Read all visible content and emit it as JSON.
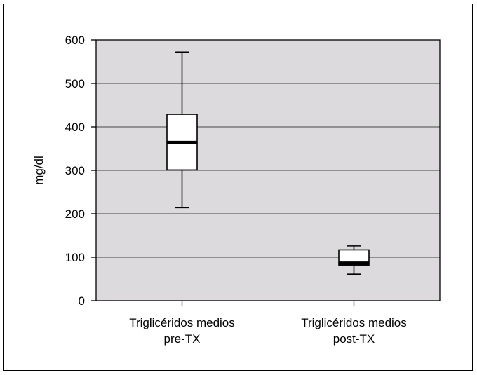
{
  "chart_data": {
    "type": "box",
    "title": "",
    "ylabel": "mg/dl",
    "xlabel": "",
    "ylim": [
      0,
      600
    ],
    "yticks": [
      0,
      100,
      200,
      300,
      400,
      500,
      600
    ],
    "grid": "horizontal",
    "plot_background": "#dcdadd",
    "categories": [
      [
        "Triglicéridos medios",
        "pre-TX"
      ],
      [
        "Triglicéridos medios",
        "post-TX"
      ]
    ],
    "boxes": [
      {
        "whisker_low": 214,
        "q1": 301,
        "median": 364,
        "q3": 429,
        "whisker_high": 572
      },
      {
        "whisker_low": 61,
        "q1": 82,
        "median": 86,
        "q3": 117,
        "whisker_high": 126
      }
    ]
  }
}
